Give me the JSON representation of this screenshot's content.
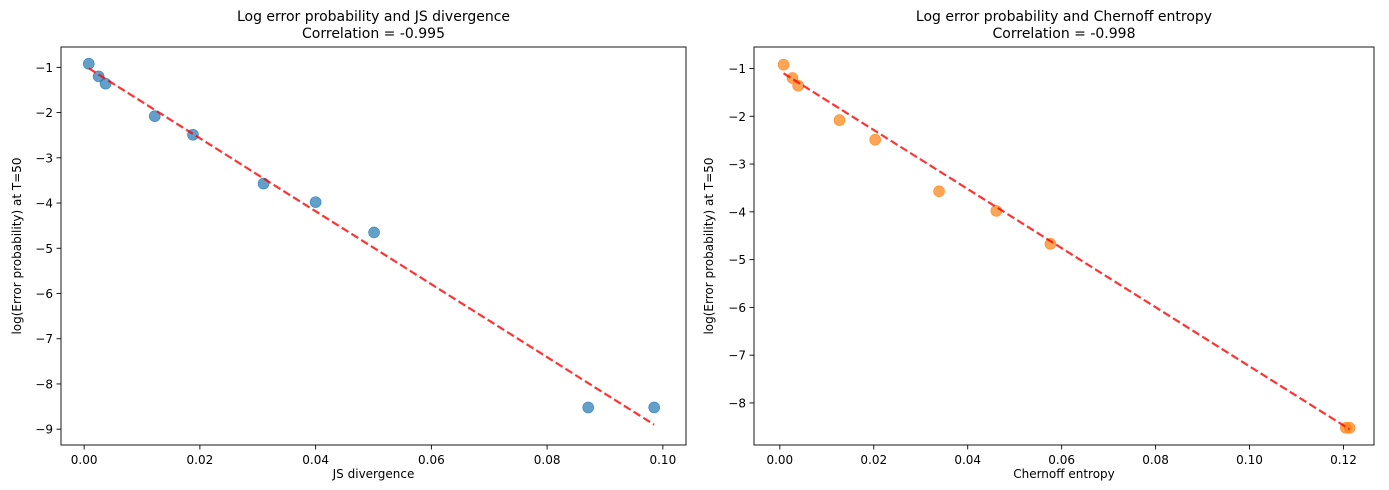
{
  "chart_data": [
    {
      "type": "scatter",
      "title": "Log error probability and JS divergence",
      "subtitle": "Correlation = -0.995",
      "xlabel": "JS divergence",
      "ylabel": "log(Error probability) at T=50",
      "xlim": [
        -0.004,
        0.104
      ],
      "ylim": [
        -9.35,
        -0.55
      ],
      "xticks": [
        0.0,
        0.02,
        0.04,
        0.06,
        0.08,
        0.1
      ],
      "xtick_labels": [
        "0.00",
        "0.02",
        "0.04",
        "0.06",
        "0.08",
        "0.10"
      ],
      "yticks": [
        -1,
        -2,
        -3,
        -4,
        -5,
        -6,
        -7,
        -8,
        -9
      ],
      "ytick_labels": [
        "−1",
        "−2",
        "−3",
        "−4",
        "−5",
        "−6",
        "−7",
        "−8",
        "−9"
      ],
      "grid": false,
      "point_color": "#1f77b4",
      "x": [
        0.0008,
        0.0025,
        0.0037,
        0.0122,
        0.0188,
        0.031,
        0.04,
        0.0501,
        0.0871,
        0.0985
      ],
      "y": [
        -0.92,
        -1.2,
        -1.36,
        -2.08,
        -2.49,
        -3.57,
        -3.98,
        -4.65,
        -8.52,
        -8.52
      ],
      "fit_line": {
        "x": [
          0.0008,
          0.0985
        ],
        "y": [
          -1.02,
          -8.9
        ],
        "color": "#ff0000"
      }
    },
    {
      "type": "scatter",
      "title": "Log error probability and Chernoff entropy",
      "subtitle": "Correlation = -0.998",
      "xlabel": "Chernoff entropy",
      "ylabel": "log(Error probability) at T=50",
      "xlim": [
        -0.0055,
        0.1265
      ],
      "ylim": [
        -8.88,
        -0.55
      ],
      "xticks": [
        0.0,
        0.02,
        0.04,
        0.06,
        0.08,
        0.1,
        0.12
      ],
      "xtick_labels": [
        "0.00",
        "0.02",
        "0.04",
        "0.06",
        "0.08",
        "0.10",
        "0.12"
      ],
      "yticks": [
        -1,
        -2,
        -3,
        -4,
        -5,
        -6,
        -7,
        -8
      ],
      "ytick_labels": [
        "−1",
        "−2",
        "−3",
        "−4",
        "−5",
        "−6",
        "−7",
        "−8"
      ],
      "grid": false,
      "point_color": "#ff7f0e",
      "x": [
        0.0008,
        0.0027,
        0.0039,
        0.0127,
        0.0203,
        0.0339,
        0.0461,
        0.0576,
        0.1205,
        0.1213
      ],
      "y": [
        -0.92,
        -1.2,
        -1.36,
        -2.08,
        -2.49,
        -3.57,
        -3.98,
        -4.67,
        -8.52,
        -8.52
      ],
      "fit_line": {
        "x": [
          0.0008,
          0.1213
        ],
        "y": [
          -1.1,
          -8.55
        ],
        "color": "#ff0000"
      }
    }
  ]
}
